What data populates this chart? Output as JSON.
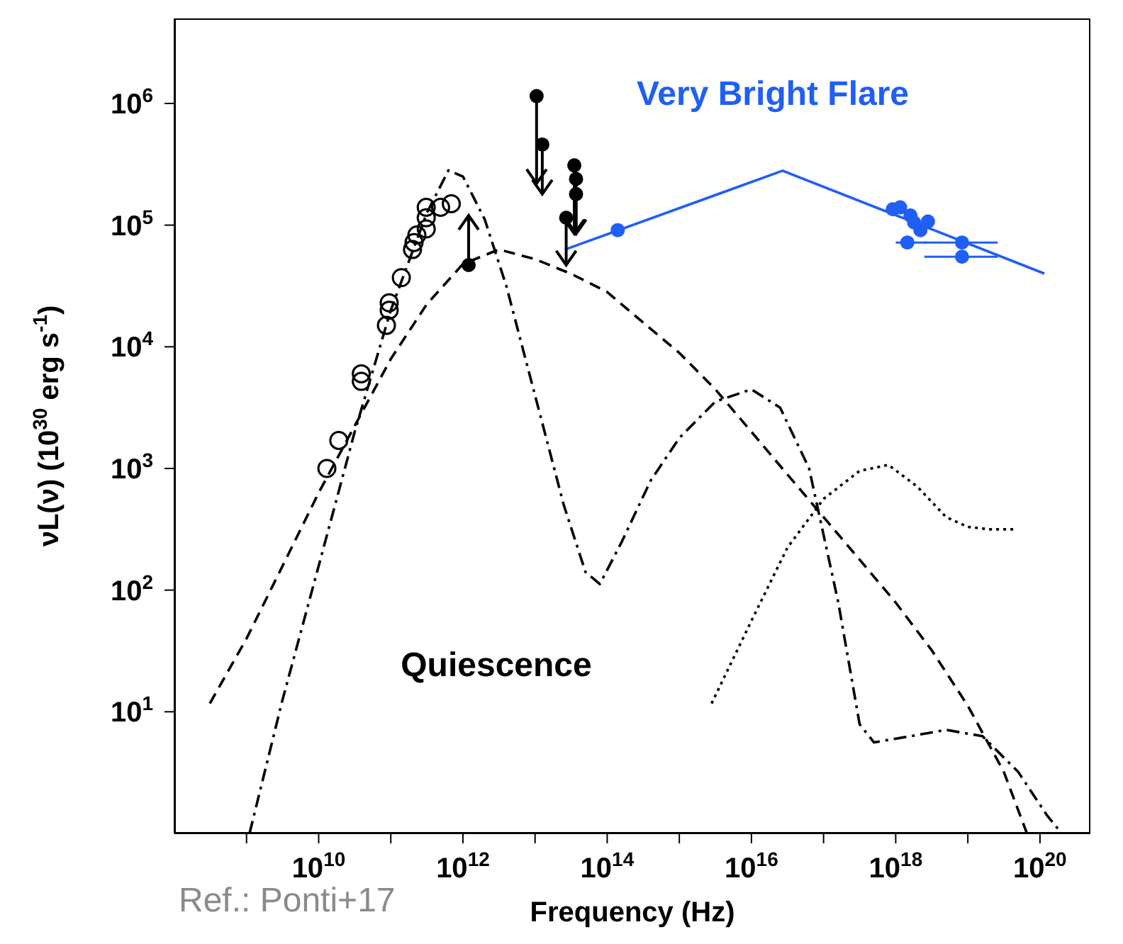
{
  "chart_data": {
    "type": "line",
    "xlabel": "Frequency (Hz)",
    "ylabel": "νL(ν) (10$^{30}$ erg s$^{-1}$)",
    "log": "xy",
    "xlim": [
      100000000.0,
      5e+20
    ],
    "ylim": [
      1,
      5000000
    ],
    "xticks": [
      {
        "value": 1000000000.0,
        "label": null
      },
      {
        "value": 10000000000.0,
        "label": "10$^{10}$"
      },
      {
        "value": 100000000000.0,
        "label": null
      },
      {
        "value": 1000000000000.0,
        "label": "10$^{12}$"
      },
      {
        "value": 10000000000000.0,
        "label": null
      },
      {
        "value": 100000000000000.0,
        "label": "10$^{14}$"
      },
      {
        "value": 1000000000000000.0,
        "label": null
      },
      {
        "value": 1e+16,
        "label": "10$^{16}$"
      },
      {
        "value": 1e+17,
        "label": null
      },
      {
        "value": 1e+18,
        "label": "10$^{18}$"
      },
      {
        "value": 1e+19,
        "label": null
      },
      {
        "value": 1e+20,
        "label": "10$^{20}$"
      }
    ],
    "yticks": [
      {
        "value": 10,
        "label": "10$^{1}$"
      },
      {
        "value": 100,
        "label": "10$^{2}$"
      },
      {
        "value": 1000,
        "label": "10$^{3}$"
      },
      {
        "value": 10000,
        "label": "10$^{4}$"
      },
      {
        "value": 100000,
        "label": "10$^{5}$"
      },
      {
        "value": 1000000,
        "label": "10$^{6}$"
      }
    ],
    "annotations": [
      "Very Bright Flare",
      "Quiescence",
      "Ref.: Ponti+17"
    ],
    "series": [
      {
        "color": "#000000",
        "line_style": "dashed",
        "marker": "none",
        "x": [
          310000000.0,
          1000000000.0,
          3160000000.0,
          10000000000.0,
          31600000000.0,
          100000000000.0,
          316000000000.0,
          1000000000000.0,
          3160000000000.0,
          10000000000000.0,
          31600000000000.0,
          100000000000000.0,
          316000000000000.0,
          1000000000000000.0,
          3160000000000000.0,
          1e+16,
          3.16e+16,
          1e+17,
          3.16e+17,
          1e+18,
          3.16e+18,
          1e+19,
          3.16e+19,
          6.6e+19
        ],
        "values": [
          11.7,
          40,
          158,
          631,
          2240,
          7940,
          22400,
          47900,
          63100,
          52500,
          39800,
          28200,
          15800,
          8910,
          4470,
          2000,
          891,
          398,
          178,
          79,
          32,
          11.2,
          3.2,
          1.0
        ]
      },
      {
        "color": "#000000",
        "line_style": "dashdot",
        "marker": "none",
        "x": [
          1100000000.0,
          3160000000.0,
          10000000000.0,
          31600000000.0,
          100000000000.0,
          316000000000.0,
          630000000000.0,
          1000000000000.0,
          2000000000000.0,
          4000000000000.0,
          10000000000000.0,
          25000000000000.0,
          50000000000000.0,
          79000000000000.0,
          160000000000000.0,
          400000000000000.0,
          1000000000000000.0,
          3160000000000000.0,
          1e+16,
          2.5e+16,
          6.3e+16,
          1.6e+17,
          3.16e+17,
          5e+17,
          1.6e+18,
          5e+18,
          1.6e+19,
          5e+19,
          1.26e+20,
          2e+20
        ],
        "values": [
          1,
          12.6,
          158,
          2000,
          20000,
          126000,
          282000,
          251000,
          112000,
          31600,
          3980,
          501,
          141,
          112,
          251,
          794,
          1780,
          3550,
          4470,
          3160,
          1000,
          79,
          7.9,
          5.6,
          6.3,
          7.1,
          6.3,
          3.2,
          1.4,
          1.0
        ]
      },
      {
        "color": "#000000",
        "line_style": "dotted",
        "marker": "none",
        "x": [
          2800000000000000.0,
          1e+16,
          3.16e+16,
          1e+17,
          3.16e+17,
          7.9e+17,
          2e+18,
          5e+18,
          1e+19,
          2e+19,
          4.7e+19
        ],
        "values": [
          11.7,
          56,
          224,
          562,
          955,
          1070,
          708,
          398,
          331,
          316,
          316
        ]
      },
      {
        "color": "#1f5ff5",
        "line_style": "solid",
        "marker": "none",
        "x": [
          26000000000000.0,
          2.7e+16,
          1.15e+20
        ],
        "values": [
          63000,
          280000,
          40000
        ]
      },
      {
        "type": "scatter",
        "color": "#000000",
        "marker": "circle_open",
        "x": [
          13000000000.0,
          19000000000.0,
          39000000000.0,
          39000000000.0,
          87000000000.0,
          95000000000.0,
          95000000000.0,
          140000000000.0,
          200000000000.0,
          210000000000.0,
          230000000000.0,
          310000000000.0,
          310000000000.0,
          310000000000.0,
          490000000000.0,
          690000000000.0
        ],
        "values": [
          1000,
          1700,
          6000,
          5200,
          15000,
          20000,
          23000,
          37000,
          63000,
          72000,
          83000,
          93000,
          115000,
          140000,
          140000,
          150000
        ]
      },
      {
        "type": "scatter",
        "color": "#000000",
        "marker": "circle",
        "x": [
          1200000000000.0
        ],
        "values": [
          47000
        ],
        "errors": [
          [
            47000,
            120000
          ]
        ]
      },
      {
        "type": "scatter",
        "color": "#000000",
        "marker": "circle",
        "x": [
          10500000000000.0,
          12600000000000.0,
          35000000000000.0,
          37000000000000.0,
          37000000000000.0,
          27000000000000.0
        ],
        "values": [
          1150000,
          460000,
          310000,
          240000,
          180000,
          115000
        ],
        "errors": [
          [
            220000,
            1150000
          ],
          [
            180000,
            460000
          ],
          [
            85000,
            310000
          ],
          [
            85000,
            240000
          ],
          [
            85000,
            180000
          ],
          [
            47000,
            115000
          ]
        ]
      },
      {
        "type": "scatter",
        "color": "#1f5ff5",
        "marker": "circle",
        "x": [
          140000000000000.0,
          9.1e+17,
          1.15e+18,
          1.6e+18,
          1.8e+18,
          2.2e+18,
          2.8e+18,
          1.45e+18,
          8.3e+18,
          8.3e+18
        ],
        "values": [
          91000,
          135000,
          140000,
          120000,
          105000,
          91000,
          107000,
          72000,
          72000,
          55000
        ],
        "xerrors": [
          null,
          null,
          null,
          null,
          null,
          null,
          null,
          [
            1e+18,
            2.7e+18
          ],
          [
            2.5e+18,
            2.6e+19
          ],
          [
            2.5e+18,
            2.6e+19
          ]
        ]
      }
    ]
  }
}
